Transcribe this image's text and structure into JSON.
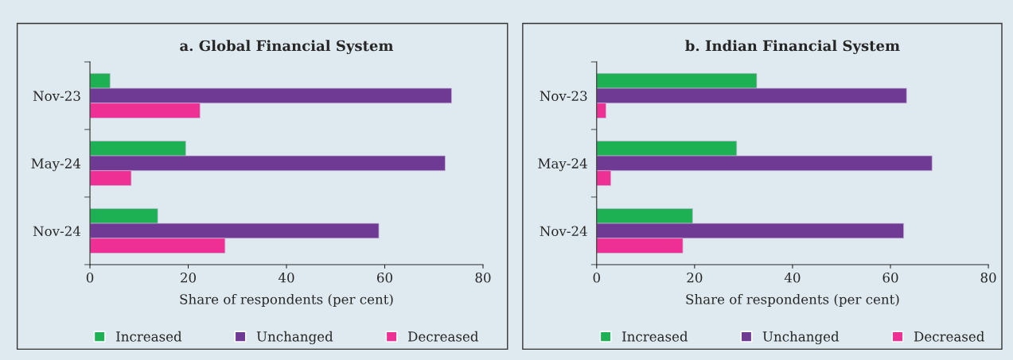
{
  "chart_data": [
    {
      "type": "bar",
      "orientation": "horizontal",
      "title": "a. Global Financial System",
      "xlabel": "Share of respondents (per cent)",
      "categories": [
        "Nov-23",
        "May-24",
        "Nov-24"
      ],
      "xlim": [
        0,
        80
      ],
      "xticks": [
        0,
        20,
        40,
        60,
        80
      ],
      "legend": "bottom",
      "grid": false,
      "series": [
        {
          "name": "Increased",
          "color": "#1db154",
          "values": [
            4.1,
            19.5,
            13.8
          ]
        },
        {
          "name": "Unchanged",
          "color": "#6f3a94",
          "values": [
            73.6,
            72.3,
            58.8
          ]
        },
        {
          "name": "Decreased",
          "color": "#ee2f93",
          "values": [
            22.4,
            8.4,
            27.5
          ]
        }
      ]
    },
    {
      "type": "bar",
      "orientation": "horizontal",
      "title": "b. Indian Financial System",
      "xlabel": "Share of respondents (per cent)",
      "categories": [
        "Nov-23",
        "May-24",
        "Nov-24"
      ],
      "xlim": [
        0,
        80
      ],
      "xticks": [
        0,
        20,
        40,
        60,
        80
      ],
      "legend": "bottom",
      "grid": false,
      "series": [
        {
          "name": "Increased",
          "color": "#1db154",
          "values": [
            32.7,
            28.6,
            19.6
          ]
        },
        {
          "name": "Unchanged",
          "color": "#6f3a94",
          "values": [
            63.3,
            68.5,
            62.7
          ]
        },
        {
          "name": "Decreased",
          "color": "#ee2f93",
          "values": [
            1.9,
            2.9,
            17.6
          ]
        }
      ]
    }
  ]
}
